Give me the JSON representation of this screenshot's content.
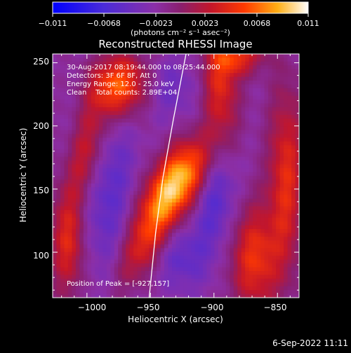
{
  "chart_data": {
    "type": "heatmap",
    "title": "Reconstructed RHESSI Image",
    "xlabel": "Heliocentric X (arcsec)",
    "ylabel": "Heliocentric Y (arcsec)",
    "xlim": [
      -1027,
      -833
    ],
    "ylim": [
      64,
      257
    ],
    "xticks": [
      -1000,
      -950,
      -900,
      -850
    ],
    "yticks": [
      100,
      150,
      200,
      250
    ],
    "xtick_labels": [
      "−1000",
      "−950",
      "−900",
      "−850"
    ],
    "ytick_labels": [
      "100",
      "150",
      "200",
      "250"
    ],
    "colorbar": {
      "range": [
        -0.011,
        0.011
      ],
      "tick_labels": [
        "−0.011",
        "−0.0068",
        "−0.0023",
        "0.0023",
        "0.0068",
        "0.011"
      ],
      "unit_label": "(photons cm⁻² s⁻¹ asec⁻²)"
    },
    "annotations": [
      "30-Aug-2017 08:19:44.000 to 08:25:44.000",
      "Detectors: 3F 6F 8F, Att 0",
      "Energy Range: 12.0 - 25.0 keV",
      "Clean    Total counts: 2.89E+04"
    ],
    "peak_label": "Position of Peak = [-927,157]",
    "sources": [
      {
        "x": -927,
        "y": 157,
        "peak": 0.011,
        "sx": 14,
        "sy": 28,
        "angle": 35
      },
      {
        "x": -975,
        "y": 232,
        "peak": 0.0085,
        "sx": 16,
        "sy": 18,
        "angle": 20
      },
      {
        "x": -1000,
        "y": 180,
        "peak": 0.006,
        "sx": 10,
        "sy": 30,
        "angle": 10
      },
      {
        "x": -1015,
        "y": 108,
        "peak": 0.006,
        "sx": 10,
        "sy": 30,
        "angle": 0
      },
      {
        "x": -955,
        "y": 108,
        "peak": 0.006,
        "sx": 11,
        "sy": 28,
        "angle": 25
      },
      {
        "x": -868,
        "y": 95,
        "peak": 0.0065,
        "sx": 14,
        "sy": 30,
        "angle": 0
      },
      {
        "x": -843,
        "y": 160,
        "peak": 0.006,
        "sx": 10,
        "sy": 50,
        "angle": 0
      },
      {
        "x": -895,
        "y": 230,
        "peak": 0.006,
        "sx": 10,
        "sy": 30,
        "angle": 0
      },
      {
        "x": -880,
        "y": 255,
        "peak": 0.0055,
        "sx": 14,
        "sy": 10,
        "angle": 0
      }
    ],
    "negatives": [
      {
        "x": -985,
        "y": 150,
        "peak": -0.0035,
        "sx": 18,
        "sy": 50,
        "angle": 0
      },
      {
        "x": -900,
        "y": 150,
        "peak": -0.0045,
        "sx": 12,
        "sy": 35,
        "angle": 0
      },
      {
        "x": -925,
        "y": 95,
        "peak": -0.003,
        "sx": 14,
        "sy": 18,
        "angle": 0
      },
      {
        "x": -935,
        "y": 230,
        "peak": -0.0025,
        "sx": 14,
        "sy": 18,
        "angle": 0
      }
    ],
    "limb_curve": [
      [
        -922,
        257
      ],
      [
        -932,
        205
      ],
      [
        -940,
        160
      ],
      [
        -946,
        115
      ],
      [
        -951,
        64
      ]
    ]
  },
  "timestamp": "6-Sep-2022 11:11"
}
